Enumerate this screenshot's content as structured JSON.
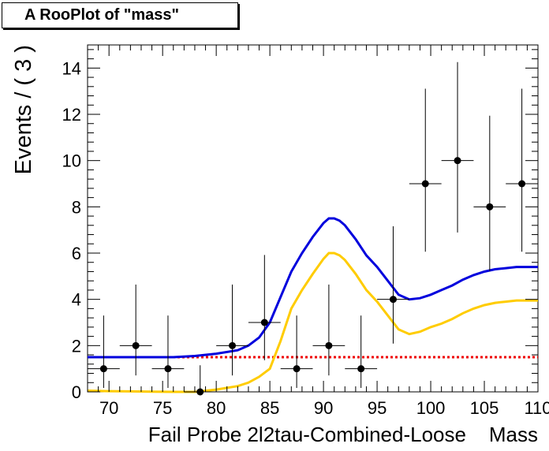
{
  "title": "A RooPlot of \"mass\"",
  "chart_data": {
    "type": "scatter",
    "title": "A RooPlot of \"mass\"",
    "xlabel": "Fail Probe 2l2tau-Combined-Loose    Mass",
    "ylabel": "Events / ( 3 )",
    "xlim": [
      68,
      110
    ],
    "ylim": [
      0,
      15
    ],
    "xticks": [
      "70",
      "75",
      "80",
      "85",
      "90",
      "95",
      "100",
      "105",
      "110"
    ],
    "yticks": [
      "0",
      "2",
      "4",
      "6",
      "8",
      "10",
      "12",
      "14"
    ],
    "grid": false,
    "colors": {
      "data": "#000000",
      "total": "#0000dd",
      "signal": "#ffcc00",
      "background": "#ee0000"
    },
    "series": [
      {
        "kind": "points",
        "x": [
          69.5,
          72.5,
          75.5,
          78.5,
          81.5,
          84.5,
          87.5,
          90.5,
          93.5,
          96.5,
          99.5,
          102.5,
          105.5,
          108.5
        ],
        "y": [
          1,
          2,
          1,
          0,
          2,
          3,
          1,
          2,
          1,
          4,
          9,
          10,
          8,
          9
        ],
        "xerr": 1.5,
        "yerr_low": [
          0.83,
          1.29,
          0.83,
          0,
          1.29,
          1.63,
          0.83,
          1.29,
          0.83,
          1.91,
          2.94,
          3.11,
          2.77,
          2.94
        ],
        "yerr_high": [
          2.3,
          2.64,
          2.3,
          1.15,
          2.64,
          2.92,
          2.3,
          2.64,
          2.3,
          3.16,
          4.11,
          4.26,
          3.94,
          4.11
        ]
      },
      {
        "kind": "curve",
        "x": [
          68,
          70,
          72,
          74,
          76,
          78,
          80,
          82,
          83,
          84,
          85,
          86,
          87,
          88,
          89,
          90,
          90.5,
          91,
          91.5,
          92,
          93,
          94,
          95,
          96,
          97,
          98,
          99,
          100,
          101,
          102,
          103,
          104,
          105,
          106,
          107,
          108,
          109,
          110
        ],
        "y": [
          1.5,
          1.5,
          1.5,
          1.5,
          1.5,
          1.55,
          1.65,
          1.8,
          2.0,
          2.35,
          3.0,
          4.1,
          5.2,
          6.0,
          6.7,
          7.3,
          7.5,
          7.5,
          7.4,
          7.2,
          6.6,
          5.9,
          5.4,
          4.8,
          4.2,
          4.0,
          4.05,
          4.2,
          4.4,
          4.6,
          4.85,
          5.05,
          5.2,
          5.3,
          5.35,
          5.4,
          5.4,
          5.4
        ]
      },
      {
        "kind": "curve",
        "x": [
          68,
          70,
          72,
          74,
          76,
          78,
          80,
          82,
          83,
          84,
          85,
          86,
          87,
          88,
          89,
          90,
          90.5,
          91,
          91.5,
          92,
          93,
          94,
          95,
          96,
          97,
          98,
          99,
          100,
          101,
          102,
          103,
          104,
          105,
          106,
          107,
          108,
          109,
          110
        ],
        "y": [
          0.05,
          0.03,
          0.02,
          0.01,
          0.0,
          0.0,
          0.1,
          0.25,
          0.4,
          0.65,
          1.0,
          2.2,
          3.6,
          4.4,
          5.1,
          5.75,
          6.0,
          6.0,
          5.9,
          5.7,
          5.1,
          4.4,
          3.9,
          3.3,
          2.7,
          2.5,
          2.6,
          2.8,
          2.95,
          3.15,
          3.4,
          3.6,
          3.75,
          3.85,
          3.9,
          3.95,
          3.95,
          3.95
        ]
      },
      {
        "kind": "dashed-line",
        "x": [
          68,
          110
        ],
        "y": [
          1.5,
          1.5
        ]
      }
    ]
  }
}
